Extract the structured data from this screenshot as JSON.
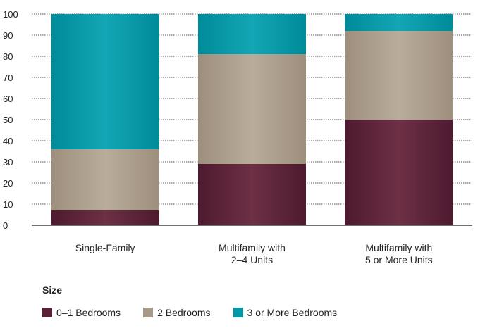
{
  "chart_data": {
    "type": "bar",
    "stacked": true,
    "title": "",
    "xlabel": "",
    "ylabel": "",
    "ylim": [
      0,
      100
    ],
    "yticks": [
      0,
      10,
      20,
      30,
      40,
      50,
      60,
      70,
      80,
      90,
      100
    ],
    "grid": "horizontal dotted",
    "categories": [
      [
        "Single-Family"
      ],
      [
        "Multifamily with",
        "2–4 Units"
      ],
      [
        "Multifamily with",
        "5 or More Units"
      ]
    ],
    "series": [
      {
        "name": "0–1 Bedrooms",
        "color": "#5a2238",
        "values": [
          7,
          29,
          50
        ]
      },
      {
        "name": "2 Bedrooms",
        "color": "#a89a89",
        "values": [
          29,
          52,
          42
        ]
      },
      {
        "name": "3 or More Bedrooms",
        "color": "#0097a7",
        "values": [
          64,
          19,
          8
        ]
      }
    ],
    "legend_title": "Size",
    "legend_position": "bottom-left"
  }
}
